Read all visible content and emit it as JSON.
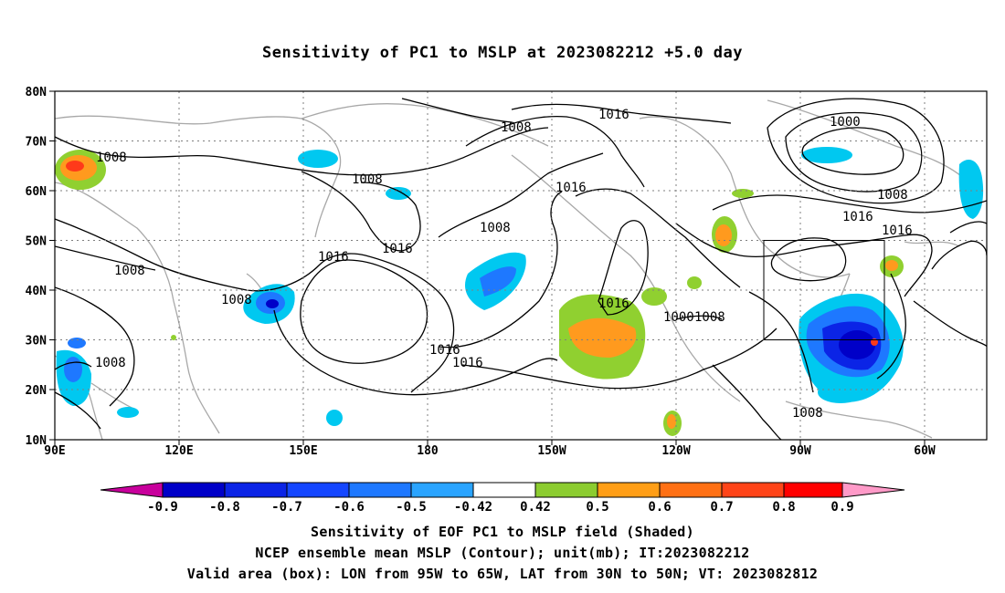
{
  "title": "Sensitivity of PC1 to MSLP at 2023082212 +5.0 day",
  "map": {
    "lon_labels": [
      "90E",
      "120E",
      "150E",
      "180",
      "150W",
      "120W",
      "90W",
      "60W"
    ],
    "lat_labels": [
      "80N",
      "70N",
      "60N",
      "50N",
      "40N",
      "30N",
      "20N",
      "10N"
    ],
    "contour_labels": [
      "1008",
      "1016",
      "1008",
      "1008",
      "1008",
      "1016",
      "1008",
      "1016",
      "1008",
      "1008",
      "1016",
      "1016",
      "1016",
      "1016",
      "1000",
      "1008",
      "1016",
      "1016",
      "1008",
      "1008",
      "1008",
      "1000",
      "1016"
    ],
    "validation_box": {
      "lon_min": "95W",
      "lon_max": "65W",
      "lat_min": "30N",
      "lat_max": "50N"
    },
    "shading_colors": {
      "neg_strong": "#0000c8",
      "neg_mid": "#2a52f0",
      "neg_weak": "#00c8f0",
      "pos_weak": "#90d030",
      "pos_mid": "#ff9a1e",
      "pos_strong": "#ff3a1a",
      "coast": "#a8a8a8",
      "contour": "#000000"
    }
  },
  "colorbar": {
    "labels": [
      "-0.9",
      "-0.8",
      "-0.7",
      "-0.6",
      "-0.5",
      "-0.42",
      "0.42",
      "0.5",
      "0.6",
      "0.7",
      "0.8",
      "0.9"
    ],
    "colors": [
      "#c8009c",
      "#0000c8",
      "#0b24e6",
      "#1446ff",
      "#1e78ff",
      "#2aa4ff",
      "#00c8f0",
      "#ffffff",
      "#8ccc30",
      "#ff9e16",
      "#ff7014",
      "#ff4418",
      "#ff0000",
      "#ff9ac8"
    ]
  },
  "captions": [
    "Sensitivity of EOF PC1 to MSLP field (Shaded)",
    "NCEP ensemble mean MSLP (Contour); unit(mb); IT:2023082212",
    "Valid area (box): LON from 95W to 65W, LAT from 30N to 50N; VT: 2023082812"
  ]
}
